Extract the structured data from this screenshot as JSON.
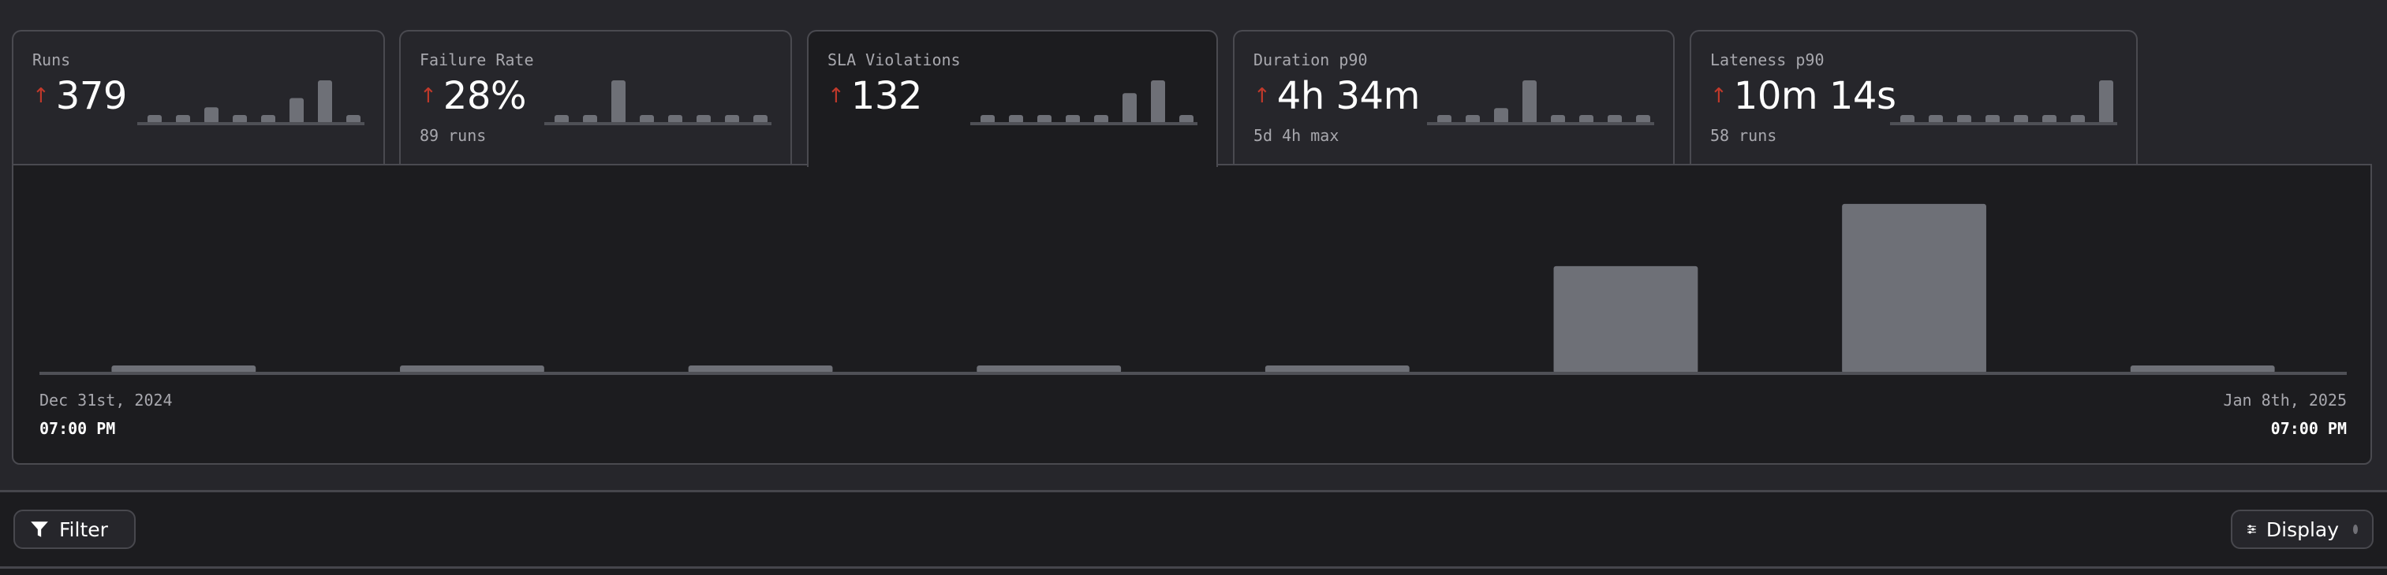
{
  "colors": {
    "bar": "#6e7077",
    "baseline": "#4f5056",
    "trend_up": "#c0392b",
    "panel_bg": "#1c1c1f",
    "page_bg": "#26262b"
  },
  "cards": [
    {
      "label": "Runs",
      "value": "379",
      "trend": "up",
      "trend_icon": "↑",
      "sub": "",
      "spark": [
        0,
        0,
        10,
        0,
        0,
        22,
        45,
        0
      ]
    },
    {
      "label": "Failure Rate",
      "value": "28%",
      "trend": "up",
      "trend_icon": "↑",
      "sub": "89 runs",
      "spark": [
        0,
        0,
        1,
        0,
        0,
        0,
        0,
        0
      ]
    },
    {
      "label": "SLA Violations",
      "value": "132",
      "trend": "up",
      "trend_icon": "↑",
      "sub": "",
      "spark": [
        0,
        0,
        0,
        0,
        0,
        51,
        81,
        0
      ],
      "selected": true
    },
    {
      "label": "Duration p90",
      "value": "4h 34m",
      "trend": "up",
      "trend_icon": "↑",
      "sub": "5d 4h max",
      "spark": [
        0,
        0,
        4,
        20,
        0,
        0,
        0,
        0
      ]
    },
    {
      "label": "Lateness p90",
      "value": "10m 14s",
      "trend": "up",
      "trend_icon": "↑",
      "sub": "58 runs",
      "spark": [
        0,
        0,
        0,
        0,
        0,
        0,
        0,
        5
      ]
    }
  ],
  "chart_data": {
    "type": "bar",
    "metric": "SLA Violations",
    "values": [
      0,
      0,
      0,
      0,
      0,
      51,
      81,
      0
    ],
    "x_start": {
      "date": "Dec 31st, 2024",
      "time": "07:00 PM"
    },
    "x_end": {
      "date": "Jan 8th, 2025",
      "time": "07:00 PM"
    },
    "ylim": [
      0,
      92
    ],
    "grid": false
  },
  "toolbar": {
    "filter_label": "Filter",
    "display_label": "Display",
    "filter_icon": "funnel-icon",
    "display_icon": "sliders-icon"
  }
}
